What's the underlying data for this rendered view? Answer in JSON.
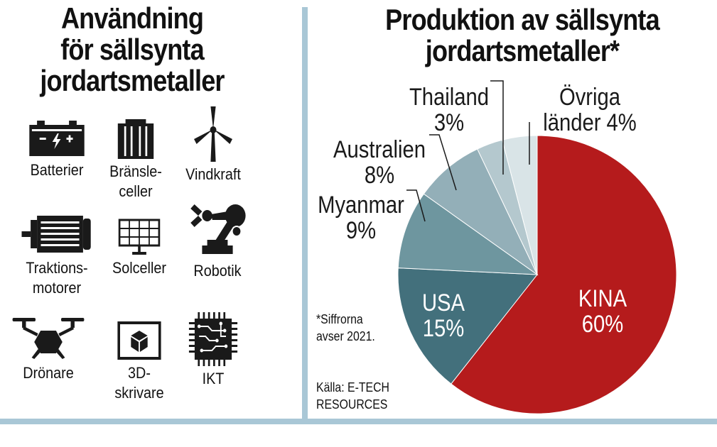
{
  "usage_panel": {
    "title_lines": [
      "Användning",
      "för sällsynta",
      "jordartsmetaller"
    ],
    "items": [
      {
        "icon": "battery-icon",
        "label_lines": [
          "Batterier"
        ]
      },
      {
        "icon": "fuel-cell-icon",
        "label_lines": [
          "Bränsle-",
          "celler"
        ]
      },
      {
        "icon": "wind-turbine-icon",
        "label_lines": [
          "Vindkraft"
        ]
      },
      {
        "icon": "electric-motor-icon",
        "label_lines": [
          "Traktions-",
          "motorer"
        ]
      },
      {
        "icon": "solar-panel-icon",
        "label_lines": [
          "Solceller"
        ]
      },
      {
        "icon": "robot-arm-icon",
        "label_lines": [
          "Robotik"
        ]
      },
      {
        "icon": "drone-icon",
        "label_lines": [
          "Drönare"
        ]
      },
      {
        "icon": "3d-printer-icon",
        "label_lines": [
          "3D-",
          "skrivare"
        ]
      },
      {
        "icon": "chip-icon",
        "label_lines": [
          "IKT"
        ]
      }
    ]
  },
  "chart_data": {
    "type": "pie",
    "title_lines": [
      "Produktion av sällsynta",
      "jordartsmetaller*"
    ],
    "slices": [
      {
        "name": "KINA",
        "value": 60,
        "label": "60%",
        "color": "#b51b1c"
      },
      {
        "name": "USA",
        "value": 15,
        "label": "15%",
        "color": "#43707c"
      },
      {
        "name": "Myanmar",
        "value": 9,
        "label": "9%",
        "color": "#6e969f"
      },
      {
        "name": "Australien",
        "value": 8,
        "label": "8%",
        "color": "#93afb8"
      },
      {
        "name": "Thailand",
        "value": 3,
        "label": "3%",
        "color": "#b4c8ce"
      },
      {
        "name": "Övriga länder",
        "value": 4,
        "label": "4%",
        "color": "#d9e4e7"
      }
    ],
    "outside_labels": {
      "Övriga länder": [
        "Övriga",
        "länder 4%"
      ],
      "Thailand": [
        "Thailand",
        "3%"
      ],
      "Australien": [
        "Australien",
        "8%"
      ],
      "Myanmar": [
        "Myanmar",
        "9%"
      ]
    },
    "footnote_lines": [
      "*Siffrorna",
      "avser 2021."
    ],
    "source_lines": [
      "Källa: E-TECH",
      "RESOURCES"
    ]
  },
  "colors": {
    "divider": "#a9c7d6",
    "icon": "#1a1a1a"
  }
}
